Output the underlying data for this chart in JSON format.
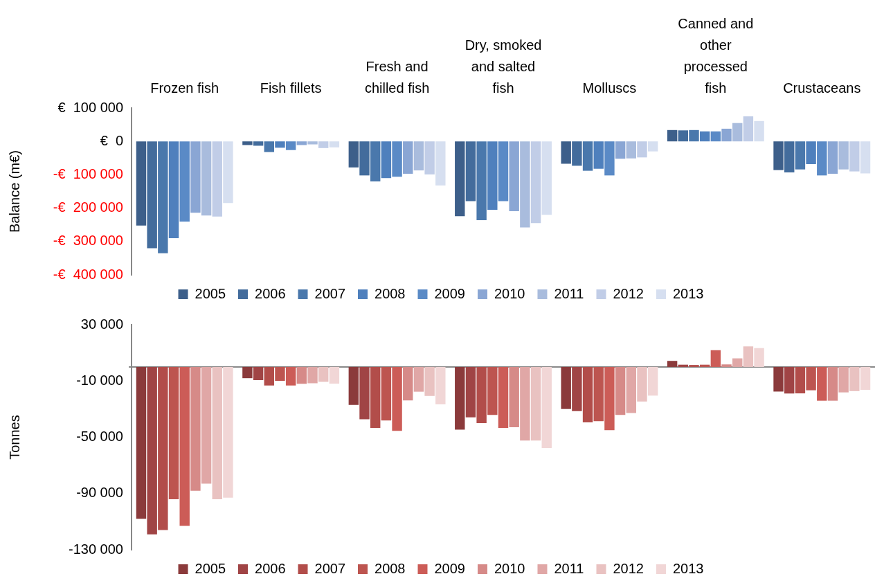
{
  "chart_data": [
    {
      "type": "bar",
      "ylabel": "Balance (m€)",
      "categories": [
        "Frozen fish",
        "Fish fillets",
        "Fresh and chilled fish",
        "Dry, smoked and salted fish",
        "Molluscs",
        "Canned and other processed fish",
        "Crustaceans"
      ],
      "ylim": [
        -400000,
        100000
      ],
      "yticks": [
        {
          "value": 100000,
          "label": "€  100 000"
        },
        {
          "value": 0,
          "label": "€  0"
        },
        {
          "value": -100000,
          "label": "-€  100 000"
        },
        {
          "value": -200000,
          "label": "-€  200 000"
        },
        {
          "value": -300000,
          "label": "-€  300 000"
        },
        {
          "value": -400000,
          "label": "-€  400 000"
        }
      ],
      "legend": "bottom",
      "series": [
        {
          "name": "2005",
          "color": "#3d5f8a",
          "values": [
            -252000,
            -11000,
            -78000,
            -224000,
            -67000,
            34000,
            -86000
          ]
        },
        {
          "name": "2006",
          "color": "#436c9c",
          "values": [
            -320000,
            -13000,
            -102000,
            -179000,
            -73000,
            33000,
            -93000
          ]
        },
        {
          "name": "2007",
          "color": "#4a78ac",
          "values": [
            -335000,
            -32000,
            -120000,
            -236000,
            -88000,
            34000,
            -84000
          ]
        },
        {
          "name": "2008",
          "color": "#4f80bd",
          "values": [
            -290000,
            -19000,
            -110000,
            -205000,
            -82000,
            30000,
            -68000
          ]
        },
        {
          "name": "2009",
          "color": "#5a8ac6",
          "values": [
            -240000,
            -26000,
            -106000,
            -179000,
            -102000,
            30000,
            -102000
          ]
        },
        {
          "name": "2010",
          "color": "#8aa6d4",
          "values": [
            -214000,
            -11000,
            -97000,
            -209000,
            -52000,
            38000,
            -97000
          ]
        },
        {
          "name": "2011",
          "color": "#a9bcdd",
          "values": [
            -222000,
            -9000,
            -87000,
            -258000,
            -51000,
            55000,
            -84000
          ]
        },
        {
          "name": "2012",
          "color": "#c1cde7",
          "values": [
            -225000,
            -20000,
            -99000,
            -245000,
            -48000,
            75000,
            -90000
          ]
        },
        {
          "name": "2013",
          "color": "#d6dff0",
          "values": [
            -185000,
            -18000,
            -132000,
            -220000,
            -30000,
            61000,
            -96000
          ]
        }
      ]
    },
    {
      "type": "bar",
      "ylabel": "Tonnes",
      "categories": [
        null,
        null,
        null,
        null,
        null,
        null,
        null
      ],
      "tick_labels": "y",
      "ylim": [
        -130000,
        30000
      ],
      "yticks": [
        {
          "value": 30000,
          "label": "30 000"
        },
        {
          "value": -10000,
          "label": "-10 000"
        },
        {
          "value": -50000,
          "label": "-50 000"
        },
        {
          "value": -90000,
          "label": "-90 000"
        },
        {
          "value": -130000,
          "label": "-130 000"
        }
      ],
      "legend": "bottom",
      "ref_lines": [
        {
          "axis": "y",
          "value": 0,
          "color": "#888888"
        }
      ],
      "series": [
        {
          "name": "2005",
          "color": "#8b3a3b",
          "values": [
            -108000,
            -8000,
            -27000,
            -44600,
            -29900,
            4300,
            -17500
          ]
        },
        {
          "name": "2006",
          "color": "#a04445",
          "values": [
            -119000,
            -9400,
            -37200,
            -35900,
            -31400,
            1600,
            -18900
          ]
        },
        {
          "name": "2007",
          "color": "#b24d4a",
          "values": [
            -116000,
            -13200,
            -43400,
            -39900,
            -39400,
            1400,
            -18800
          ]
        },
        {
          "name": "2008",
          "color": "#bd5550",
          "values": [
            -94000,
            -9900,
            -38100,
            -34100,
            -38500,
            1600,
            -16600
          ]
        },
        {
          "name": "2009",
          "color": "#cc5c57",
          "values": [
            -113000,
            -13200,
            -45500,
            -43300,
            -44900,
            11900,
            -24000
          ]
        },
        {
          "name": "2010",
          "color": "#d68a88",
          "values": [
            -88000,
            -12000,
            -23800,
            -42800,
            -34100,
            1800,
            -24000
          ]
        },
        {
          "name": "2011",
          "color": "#e0a7a6",
          "values": [
            -83000,
            -11600,
            -17600,
            -52300,
            -32800,
            6100,
            -18100
          ]
        },
        {
          "name": "2012",
          "color": "#e9c2c1",
          "values": [
            -94000,
            -10600,
            -20600,
            -52300,
            -24600,
            14600,
            -17200
          ]
        },
        {
          "name": "2013",
          "color": "#f1d6d6",
          "values": [
            -93000,
            -11900,
            -26600,
            -57600,
            -20400,
            13400,
            -16300
          ]
        }
      ]
    }
  ]
}
